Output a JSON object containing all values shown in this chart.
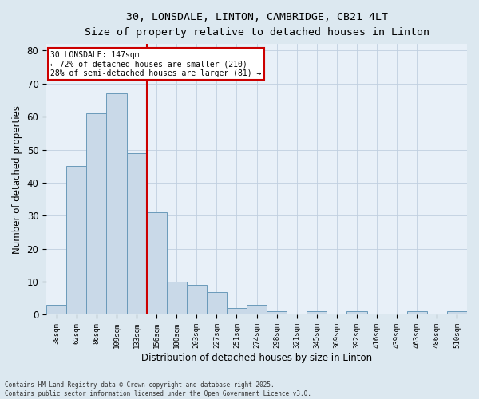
{
  "title_line1": "30, LONSDALE, LINTON, CAMBRIDGE, CB21 4LT",
  "title_line2": "Size of property relative to detached houses in Linton",
  "xlabel": "Distribution of detached houses by size in Linton",
  "ylabel": "Number of detached properties",
  "bar_labels": [
    "38sqm",
    "62sqm",
    "86sqm",
    "109sqm",
    "133sqm",
    "156sqm",
    "180sqm",
    "203sqm",
    "227sqm",
    "251sqm",
    "274sqm",
    "298sqm",
    "321sqm",
    "345sqm",
    "369sqm",
    "392sqm",
    "416sqm",
    "439sqm",
    "463sqm",
    "486sqm",
    "510sqm"
  ],
  "bar_values": [
    3,
    45,
    61,
    67,
    49,
    31,
    10,
    9,
    7,
    2,
    3,
    1,
    0,
    1,
    0,
    1,
    0,
    0,
    1,
    0,
    1
  ],
  "bar_color": "#c9d9e8",
  "bar_edgecolor": "#6a9aba",
  "ylim": [
    0,
    82
  ],
  "yticks": [
    0,
    10,
    20,
    30,
    40,
    50,
    60,
    70,
    80
  ],
  "vline_x": 4.5,
  "vline_color": "#cc0000",
  "annotation_title": "30 LONSDALE: 147sqm",
  "annotation_line1": "← 72% of detached houses are smaller (210)",
  "annotation_line2": "28% of semi-detached houses are larger (81) →",
  "annotation_box_color": "#ffffff",
  "annotation_box_edgecolor": "#cc0000",
  "grid_color": "#c0cfe0",
  "background_color": "#dce8f0",
  "plot_bg_color": "#e8f0f8",
  "footer_line1": "Contains HM Land Registry data © Crown copyright and database right 2025.",
  "footer_line2": "Contains public sector information licensed under the Open Government Licence v3.0."
}
